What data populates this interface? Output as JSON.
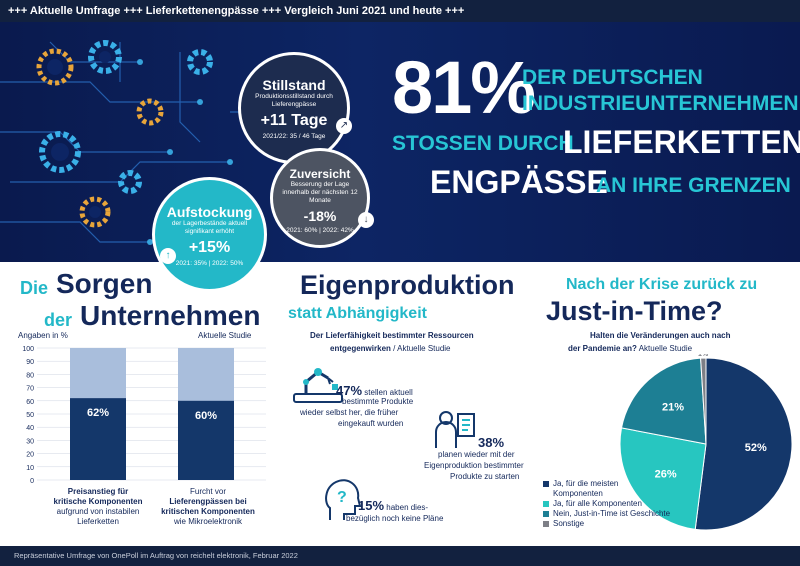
{
  "top_banner": "+++ Aktuelle Umfrage +++ Lieferkettenengpässe +++ Vergleich Juni 2021 und heute +++",
  "hero": {
    "percent": "81%",
    "line1": "DER DEUTSCHEN",
    "line2": "INDUSTRIEUNTERNEHMEN",
    "line3a": "STOSSEN DURCH",
    "line3b": "LIEFERKETTEN-",
    "line4a": "ENGPÄSSE",
    "line4b": "AN IHRE GRENZEN"
  },
  "bubbles": {
    "stillstand": {
      "title": "Stillstand",
      "sub": "Produktionsstillstand durch Lieferengpässe",
      "value": "+11 Tage",
      "foot": "2021/22: 35 / 46 Tage",
      "badge_icon": "arrow-up-right-icon"
    },
    "zuversicht": {
      "title": "Zuversicht",
      "sub": "Besserung der Lage innerhalb der nächsten 12 Monate",
      "value": "-18%",
      "foot": "2021: 60% | 2022: 42%",
      "badge_icon": "arrow-down-icon"
    },
    "aufstockung": {
      "title": "Aufstockung",
      "sub": "der Lagerbestände aktuell signifikant erhöht",
      "value": "+15%",
      "foot": "2021: 35% | 2022: 50%",
      "badge_icon": "arrow-up-icon"
    }
  },
  "section1": {
    "title_small1": "Die",
    "title_big1": "Sorgen",
    "title_small2": "der",
    "title_big2": "Unternehmen",
    "units": "Angaben in %",
    "study": "Aktuelle Studie"
  },
  "chart_data": {
    "type": "bar",
    "title": "",
    "ylim": [
      0,
      100
    ],
    "yticks": [
      "100",
      "90",
      "80",
      "70",
      "60",
      "50",
      "40",
      "30",
      "20",
      "10",
      "0"
    ],
    "bars": [
      {
        "value": 62,
        "label": "62%",
        "cap_bold1": "Preisanstieg für",
        "cap_bold2": "kritische Komponenten",
        "cap1": "aufgrund von instabilen",
        "cap2": "Lieferketten"
      },
      {
        "value": 60,
        "label": "60%",
        "cap_plain1": "Furcht vor",
        "cap_bold1": "Lieferengpässen bei",
        "cap_bold2": "kritischen Komponenten",
        "cap1": "wie Mikroelektronik"
      }
    ],
    "colors": {
      "filled": "#14376a",
      "remainder": "#a9bedc"
    }
  },
  "section2": {
    "title1": "Eigenproduktion",
    "title2": "statt Abhängigkeit",
    "q1": "Der Lieferfähigkeit bestimmter Ressourcen",
    "q2a": "entgegenwirken",
    "q2b": " / Aktuelle Studie",
    "s1_pct": "47%",
    "s1_a": "stellen aktuell",
    "s1_b": "bestimmte Produkte",
    "s1_c": "wieder selbst her, die früher",
    "s1_d": "eingekauft wurden",
    "s2_pct": "38%",
    "s2_a": "planen wieder mit der",
    "s2_b": "Eigenproduktion bestimmter",
    "s2_c": "Produkte zu starten",
    "s3_pct": "15%",
    "s3_a": "haben dies-",
    "s3_b": "bezüglich noch keine Pläne"
  },
  "section3": {
    "title1": "Nach der Krise zurück zu",
    "title2": "Just-in-Time?",
    "q1": "Halten die Veränderungen auch nach",
    "q2a": "der Pandemie an?",
    "q2b": " Aktuelle Studie"
  },
  "pie_data": {
    "type": "pie",
    "slices": [
      {
        "label": "Ja, für die meisten Komponenten",
        "l1": "Ja, für die meisten",
        "l2": "Komponenten",
        "value": 52,
        "text": "52%",
        "color": "#14376a"
      },
      {
        "label": "Ja, für alle Komponenten",
        "l1": "Ja, für alle Komponenten",
        "value": 26,
        "text": "26%",
        "color": "#27c6c0"
      },
      {
        "label": "Nein, Just-in-Time ist Geschichte",
        "l1": "Nein, Just-in-Time ist Geschichte",
        "value": 21,
        "text": "21%",
        "color": "#1d7f94"
      },
      {
        "label": "Sonstige",
        "l1": "Sonstige",
        "value": 1,
        "text": "1%",
        "color": "#7d7f86"
      }
    ]
  },
  "footer": "Repräsentative Umfrage von OnePoll im Auftrag von reichelt elektronik, Februar 2022"
}
